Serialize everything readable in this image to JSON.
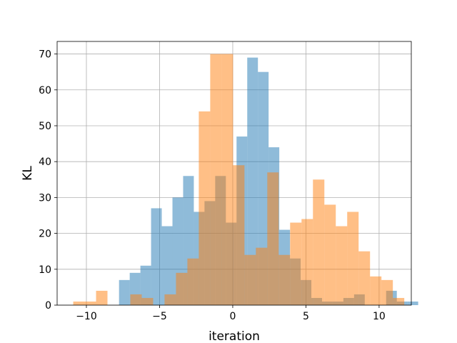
{
  "chart_data": {
    "type": "bar",
    "title": "",
    "xlabel": "iteration",
    "ylabel": "KL",
    "xlim": [
      -12.0,
      12.2
    ],
    "ylim": [
      0,
      73.5
    ],
    "xticks": [
      -10,
      -5,
      0,
      5,
      10
    ],
    "yticks": [
      0,
      10,
      20,
      30,
      40,
      50,
      60,
      70
    ],
    "grid": true,
    "legend": "none",
    "series": [
      {
        "color": "#1f77b4",
        "opacity": 0.5,
        "bin_start": -8.5,
        "bin_width": 0.73,
        "values": [
          0,
          7,
          9,
          11,
          27,
          22,
          30,
          36,
          26,
          29,
          36,
          23,
          47,
          69,
          65,
          44,
          21,
          13,
          7,
          2,
          1,
          1,
          2,
          3,
          0,
          0,
          4,
          1,
          1
        ]
      },
      {
        "color": "#ff7f0e",
        "opacity": 0.5,
        "bin_start": -10.9,
        "bin_width": 0.78,
        "values": [
          1,
          1,
          4,
          0,
          0,
          3,
          2,
          0,
          3,
          9,
          13,
          54,
          70,
          70,
          39,
          14,
          16,
          37,
          14,
          23,
          24,
          35,
          28,
          22,
          26,
          15,
          8,
          7,
          2
        ]
      }
    ]
  }
}
